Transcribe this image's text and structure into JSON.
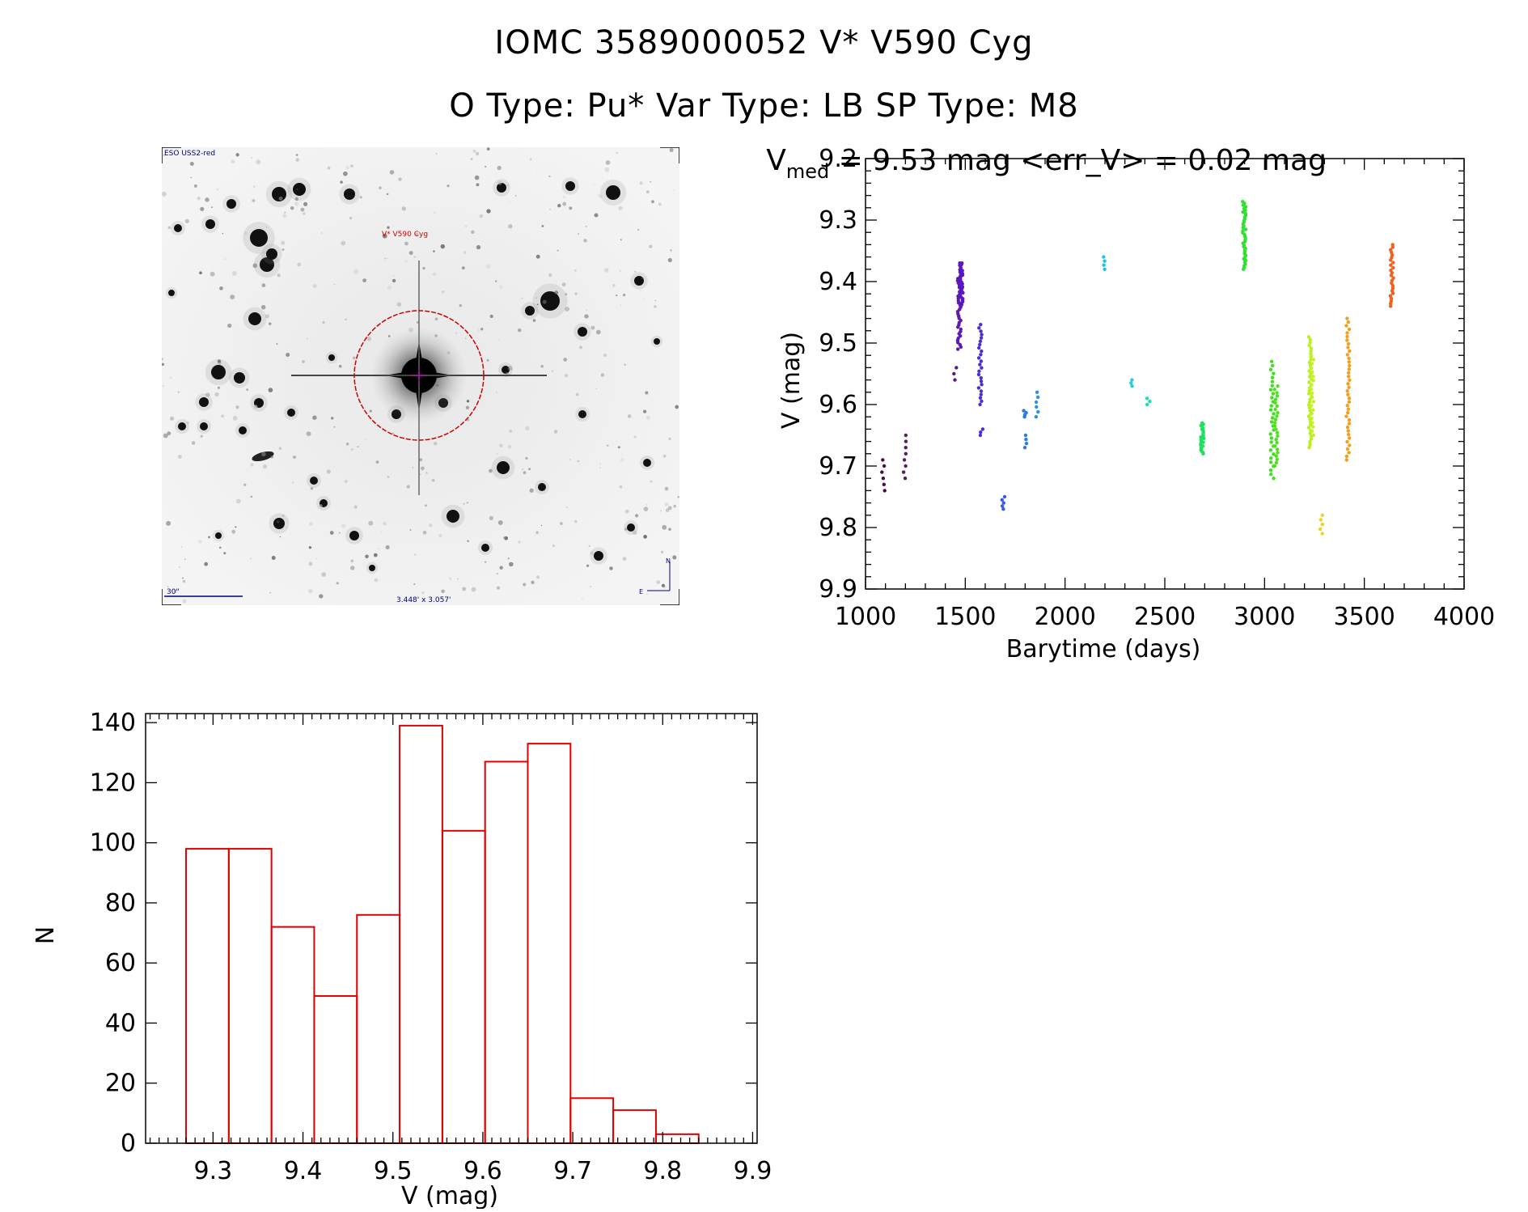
{
  "header": {
    "title_line1": "IOMC 3589000052    V* V590 Cyg",
    "title_line2": "O Type: Pu*   Var Type: LB   SP Type: M8"
  },
  "sky_image": {
    "survey_label": "ESO USS2-red",
    "target_label": "V* V590 Cyg",
    "scale_label": "30\"",
    "fov_label": "3.448' x 3.057'",
    "compass_n": "N",
    "compass_e": "E",
    "circle_color": "#cc0000",
    "label_color": "#000080"
  },
  "chart_data": [
    {
      "type": "scatter",
      "title_main": "V",
      "title_sub": "med",
      "title_rest": " = 9.53 mag <err_V> = 0.02 mag",
      "xlabel": "Barytime (days)",
      "ylabel": "V (mag)",
      "xlim": [
        1000,
        4000
      ],
      "ylim": [
        9.9,
        9.2
      ],
      "y_inverted": true,
      "xticks": [
        1000,
        1500,
        2000,
        2500,
        3000,
        3500,
        4000
      ],
      "yticks": [
        9.2,
        9.3,
        9.4,
        9.5,
        9.6,
        9.7,
        9.8,
        9.9
      ],
      "groups": [
        {
          "x": 1088,
          "y_min": 9.69,
          "y_max": 9.74,
          "n": 6,
          "color": "#4a0a46"
        },
        {
          "x": 1198,
          "y_min": 9.65,
          "y_max": 9.72,
          "n": 8,
          "color": "#5a1a5e"
        },
        {
          "x": 1448,
          "y_min": 9.54,
          "y_max": 9.56,
          "n": 3,
          "color": "#5a1a80"
        },
        {
          "x": 1470,
          "y_min": 9.37,
          "y_max": 9.51,
          "n": 40,
          "color": "#5e1ab0"
        },
        {
          "x": 1480,
          "y_min": 9.37,
          "y_max": 9.44,
          "n": 30,
          "color": "#5a18c0"
        },
        {
          "x": 1575,
          "y_min": 9.47,
          "y_max": 9.6,
          "n": 25,
          "color": "#4a30d0"
        },
        {
          "x": 1580,
          "y_min": 9.64,
          "y_max": 9.65,
          "n": 3,
          "color": "#4a30d0"
        },
        {
          "x": 1690,
          "y_min": 9.75,
          "y_max": 9.77,
          "n": 5,
          "color": "#3a5ae0"
        },
        {
          "x": 1798,
          "y_min": 9.61,
          "y_max": 9.62,
          "n": 4,
          "color": "#2a7ae8"
        },
        {
          "x": 1802,
          "y_min": 9.65,
          "y_max": 9.67,
          "n": 4,
          "color": "#2a7ae8"
        },
        {
          "x": 1858,
          "y_min": 9.58,
          "y_max": 9.62,
          "n": 6,
          "color": "#2a90e8"
        },
        {
          "x": 2198,
          "y_min": 9.36,
          "y_max": 9.38,
          "n": 4,
          "color": "#20c0f0"
        },
        {
          "x": 2338,
          "y_min": 9.56,
          "y_max": 9.57,
          "n": 3,
          "color": "#20d0e0"
        },
        {
          "x": 2418,
          "y_min": 9.59,
          "y_max": 9.6,
          "n": 3,
          "color": "#20d8c0"
        },
        {
          "x": 2688,
          "y_min": 9.63,
          "y_max": 9.68,
          "n": 25,
          "color": "#20e060"
        },
        {
          "x": 2898,
          "y_min": 9.27,
          "y_max": 9.38,
          "n": 40,
          "color": "#30e030"
        },
        {
          "x": 3038,
          "y_min": 9.53,
          "y_max": 9.72,
          "n": 30,
          "color": "#40e020"
        },
        {
          "x": 3058,
          "y_min": 9.57,
          "y_max": 9.7,
          "n": 25,
          "color": "#50e020"
        },
        {
          "x": 3228,
          "y_min": 9.49,
          "y_max": 9.67,
          "n": 40,
          "color": "#b8f020"
        },
        {
          "x": 3238,
          "y_min": 9.52,
          "y_max": 9.65,
          "n": 20,
          "color": "#c8f020"
        },
        {
          "x": 3282,
          "y_min": 9.78,
          "y_max": 9.81,
          "n": 5,
          "color": "#f0d020"
        },
        {
          "x": 3418,
          "y_min": 9.46,
          "y_max": 9.69,
          "n": 40,
          "color": "#f0a020"
        },
        {
          "x": 3638,
          "y_min": 9.34,
          "y_max": 9.44,
          "n": 25,
          "color": "#f06020"
        }
      ]
    },
    {
      "type": "bar",
      "xlabel": "V (mag)",
      "ylabel": "N",
      "xlim": [
        9.225,
        9.905
      ],
      "ylim": [
        0,
        143
      ],
      "xticks": [
        9.3,
        9.4,
        9.5,
        9.6,
        9.7,
        9.8,
        9.9
      ],
      "yticks": [
        0,
        20,
        40,
        60,
        80,
        100,
        120,
        140
      ],
      "bin_width": 0.0475,
      "bin_starts": [
        9.27,
        9.3175,
        9.365,
        9.4125,
        9.46,
        9.5075,
        9.555,
        9.6025,
        9.65,
        9.6975,
        9.745,
        9.7925
      ],
      "values": [
        98,
        98,
        72,
        49,
        76,
        139,
        104,
        127,
        133,
        15,
        11,
        3
      ],
      "color": "#e00000"
    }
  ]
}
